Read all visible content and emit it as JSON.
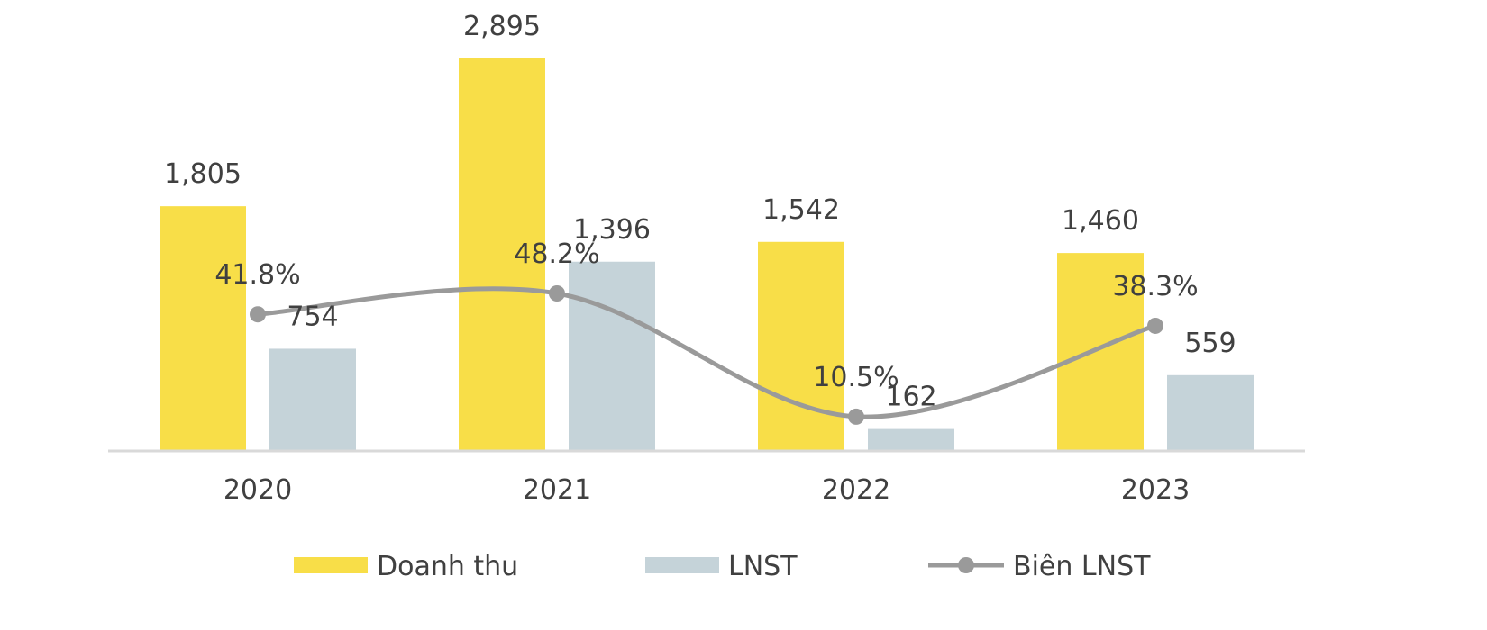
{
  "chart_data": {
    "type": "bar",
    "categories": [
      "2020",
      "2021",
      "2022",
      "2023"
    ],
    "series": [
      {
        "name": "Doanh thu",
        "kind": "bar",
        "color": "#F8DE48",
        "values": [
          1805,
          2895,
          1542,
          1460
        ],
        "labels": [
          "1,805",
          "2,895",
          "1,542",
          "1,460"
        ]
      },
      {
        "name": "LNST",
        "kind": "bar",
        "color": "#C5D3D9",
        "values": [
          754,
          1396,
          162,
          559
        ],
        "labels": [
          "754",
          "1,396",
          "162",
          "559"
        ]
      },
      {
        "name": "Biên LNST",
        "kind": "line",
        "color": "#9A9A9A",
        "values": [
          41.8,
          48.2,
          10.5,
          38.3
        ],
        "labels": [
          "41.8%",
          "48.2%",
          "10.5%",
          "38.3%"
        ]
      }
    ],
    "bar_ylim": [
      0,
      2895
    ],
    "line_ylim": [
      0,
      100
    ],
    "axis_color": "#D9D9D9",
    "grid": false,
    "legend_position": "bottom"
  }
}
